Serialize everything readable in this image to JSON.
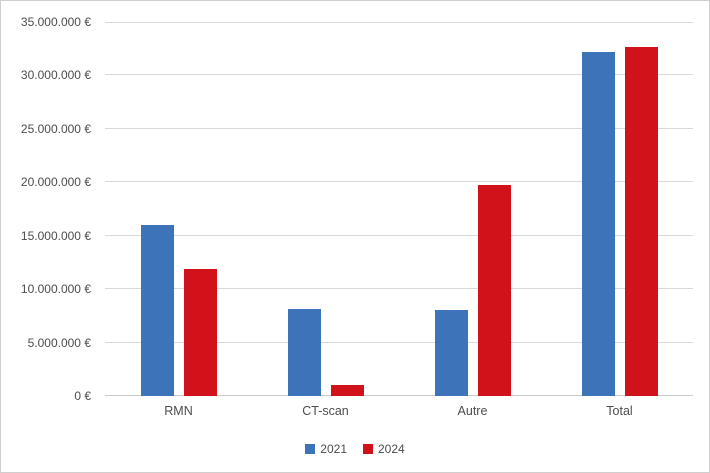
{
  "chart_data": {
    "type": "bar",
    "title": "",
    "xlabel": "",
    "ylabel": "",
    "categories": [
      "RMN",
      "CT-scan",
      "Autre",
      "Total"
    ],
    "series": [
      {
        "name": "2021",
        "color": "#3c73b9",
        "values": [
          16000000,
          8100000,
          8050000,
          32150000
        ]
      },
      {
        "name": "2024",
        "color": "#d2121a",
        "values": [
          11900000,
          1050000,
          19700000,
          32650000
        ]
      }
    ],
    "ylim": [
      0,
      35000000
    ],
    "ytick_step": 5000000,
    "yticks": [
      {
        "value": 0,
        "label": "0 €"
      },
      {
        "value": 5000000,
        "label": "5.000.000 €"
      },
      {
        "value": 10000000,
        "label": "10.000.000 €"
      },
      {
        "value": 15000000,
        "label": "15.000.000 €"
      },
      {
        "value": 20000000,
        "label": "20.000.000 €"
      },
      {
        "value": 25000000,
        "label": "25.000.000 €"
      },
      {
        "value": 30000000,
        "label": "30.000.000 €"
      },
      {
        "value": 35000000,
        "label": "35.000.000 €"
      }
    ],
    "grid": true,
    "legend_position": "bottom",
    "legend": [
      "2021",
      "2024"
    ]
  },
  "colors": {
    "background": "#ffffff",
    "frame_border": "#cfcfcf",
    "gridline": "#d9d9d9",
    "axis_line": "#c9c9c9",
    "text": "#4d4d4d"
  }
}
